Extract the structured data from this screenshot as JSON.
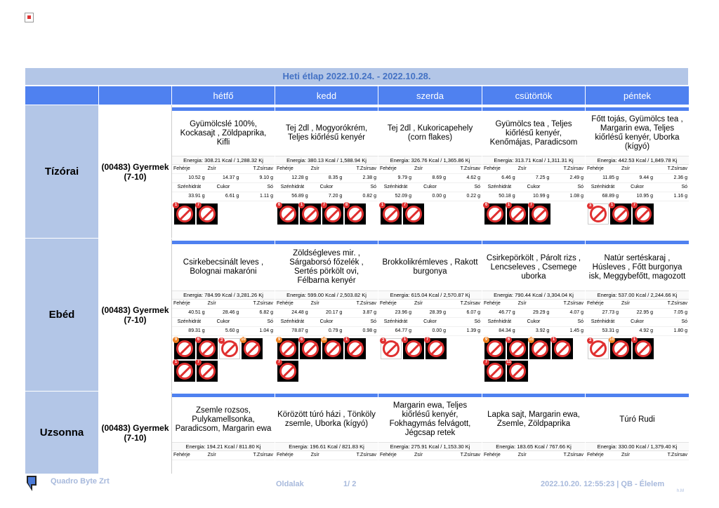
{
  "title": "Heti étlap 2022.10.24. - 2022.10.28.",
  "days": [
    "hétfő",
    "kedd",
    "szerda",
    "csütörtök",
    "péntek"
  ],
  "nutrient_labels": {
    "feherje": "Fehérje",
    "zsir": "Zsír",
    "tzsir": "T.Zsírsav",
    "szenhidrat": "Szénhidrát",
    "cukor": "Cukor",
    "so": "Só"
  },
  "meals": [
    {
      "label": "Tízórai",
      "group": "(00483) Gyermek (7-10)",
      "cells": [
        {
          "foods": "Gyümölcslé 100%, Kockasajt , Zöldpaprika, Kifli",
          "energy": "Energia: 308.21 Kcal / 1,288.32 Kj",
          "feherje": "10.52 g",
          "zsir": "14.37 g",
          "tzsir": "9.10 g",
          "szenhidrat": "33.91 g",
          "cukor": "6.61 g",
          "so": "1.11 g",
          "allergens": [
            "wheat-icon",
            "milk-icon"
          ]
        },
        {
          "foods": "Tej 2dl , Mogyorókrém, Teljes kiőrlésű kenyér",
          "energy": "Energia: 380.13 Kcal / 1,588.94 Kj",
          "feherje": "12.28 g",
          "zsir": "8.35 g",
          "tzsir": "2.38 g",
          "szenhidrat": "56.89 g",
          "cukor": "7.20 g",
          "so": "0.82 g",
          "allergens": [
            "soy-icon",
            "wheat-icon",
            "milk-icon",
            "nut-icon"
          ]
        },
        {
          "foods": "Tej 2dl , Kukoricapehely (corn flakes)",
          "energy": "Energia: 326.76 Kcal / 1,365.86 Kj",
          "feherje": "9.79 g",
          "zsir": "8.69 g",
          "tzsir": "4.62 g",
          "szenhidrat": "52.09 g",
          "cukor": "0.00 g",
          "so": "0.22 g",
          "allergens": [
            "wheat-icon",
            "milk-icon"
          ]
        },
        {
          "foods": "Gyümölcs tea , Teljes kiőrlésű kenyér, Kenőmájas, Paradicsom",
          "energy": "Energia: 313.71 Kcal / 1,311.31 Kj",
          "feherje": "6.46 g",
          "zsir": "7.25 g",
          "tzsir": "2.49 g",
          "szenhidrat": "50.18 g",
          "cukor": "10.99 g",
          "so": "1.08 g",
          "allergens": [
            "soy-icon",
            "wheat-icon",
            "milk-icon"
          ]
        },
        {
          "foods": "Főtt tojás, Gyümölcs tea , Margarin ewa, Teljes kiőrlésű kenyér, Uborka (kígyó)",
          "energy": "Energia: 442.53 Kcal / 1,849.78 Kj",
          "feherje": "11.85 g",
          "zsir": "9.44 g",
          "tzsir": "2.36 g",
          "szenhidrat": "68.89 g",
          "cukor": "10.95 g",
          "so": "1.16 g",
          "allergens": [
            "egg-icon",
            "wheat-icon",
            "milk-icon"
          ]
        }
      ]
    },
    {
      "label": "Ebéd",
      "group": "(00483) Gyermek (7-10)",
      "cells": [
        {
          "foods": "Csirkebecsinált leves , Bolognai makaróni",
          "energy": "Energia: 784.99 Kcal / 3,281.26 Kj",
          "feherje": "40.51 g",
          "zsir": "28.46 g",
          "tzsir": "6.82 g",
          "szenhidrat": "89.31 g",
          "cukor": "5.60 g",
          "so": "1.04 g",
          "allergens": [
            "celery-icon",
            "soy-icon",
            "egg-icon",
            "mustard-icon",
            "wheat-icon",
            "milk-icon"
          ]
        },
        {
          "foods": "Zöldségleves mir. , Sárgaborsó főzelék , Sertés pörkölt ovi, Félbarna kenyér",
          "energy": "Energia: 599.00 Kcal / 2,503.82 Kj",
          "feherje": "24.48 g",
          "zsir": "20.17 g",
          "tzsir": "3.87 g",
          "szenhidrat": "78.87 g",
          "cukor": "0.79 g",
          "so": "0.98 g",
          "allergens": [
            "celery-icon",
            "soy-icon",
            "mustard-icon",
            "wheat-icon",
            "milk-icon"
          ]
        },
        {
          "foods": "Brokkolikrémleves , Rakott burgonya",
          "energy": "Energia: 615.04 Kcal / 2,570.87 Kj",
          "feherje": "23.96 g",
          "zsir": "28.39 g",
          "tzsir": "6.07 g",
          "szenhidrat": "64.77 g",
          "cukor": "0.00 g",
          "so": "1.39 g",
          "allergens": [
            "egg-icon",
            "wheat-icon",
            "milk-icon"
          ]
        },
        {
          "foods": "Csirkepörkölt , Párolt rizs , Lencseleves , Csemege uborka",
          "energy": "Energia: 790.44 Kcal / 3,304.04 Kj",
          "feherje": "46.77 g",
          "zsir": "29.29 g",
          "tzsir": "4.07 g",
          "szenhidrat": "84.34 g",
          "cukor": "3.92 g",
          "so": "1.45 g",
          "allergens": [
            "celery-icon",
            "soy-icon",
            "mustard-icon",
            "wheat-icon",
            "milk-icon",
            "sesame-icon"
          ]
        },
        {
          "foods": "Natúr sertéskaraj , Húsleves , Főtt burgonya isk, Meggybefőtt, magozott",
          "energy": "Energia: 537.00 Kcal / 2,244.66 Kj",
          "feherje": "27.73 g",
          "zsir": "22.95 g",
          "tzsir": "7.05 g",
          "szenhidrat": "53.31 g",
          "cukor": "4.92 g",
          "so": "1.80 g",
          "allergens": [
            "egg-icon",
            "mustard-icon",
            "wheat-icon"
          ]
        }
      ]
    },
    {
      "label": "Uzsonna",
      "group": "(00483) Gyermek (7-10)",
      "cells": [
        {
          "foods": "Zsemle rozsos, Pulykamellsonka, Paradicsom, Margarin ewa",
          "energy": "Energia: 194.21 Kcal / 811.80 Kj"
        },
        {
          "foods": "Körözött túró házi , Tönköly zsemle, Uborka (kígyó)",
          "energy": "Energia: 196.61 Kcal / 821.83 Kj"
        },
        {
          "foods": "Margarin ewa, Teljes kiőrlésű kenyér, Fokhagymás felvágott, Jégcsap retek",
          "energy": "Energia: 275.91 Kcal / 1,153.30 Kj"
        },
        {
          "foods": "Lapka sajt, Margarin ewa, Zsemle, Zöldpaprika",
          "energy": "Energia: 183.65 Kcal / 767.66 Kj"
        },
        {
          "foods": "Túró Rudi",
          "energy": "Energia: 330.00 Kcal / 1,379.40 Kj"
        }
      ]
    }
  ],
  "footer": {
    "company": "Quadro Byte Zrt",
    "pages_label": "Oldalak",
    "pages_num": "1/ 2",
    "stamp": "2022.10.20. 12:55:23 | QB - Élelem",
    "initials": "h.M"
  },
  "colors": {
    "header_blue": "#4f81f0",
    "light_blue": "#b3c6e7",
    "allergen_red": "#e03030"
  }
}
